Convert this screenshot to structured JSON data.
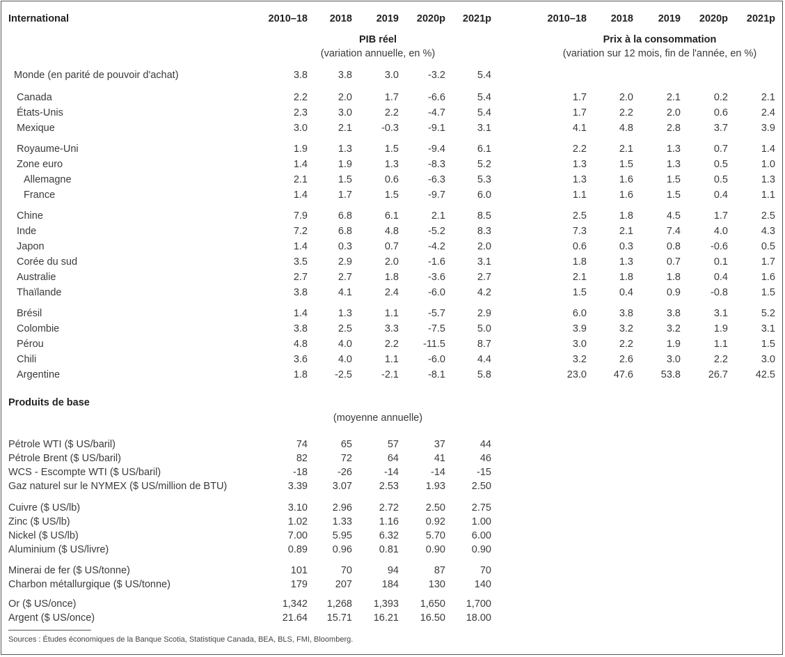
{
  "header": {
    "title": "International",
    "columns": [
      "2010–18",
      "2018",
      "2019",
      "2020p",
      "2021p"
    ]
  },
  "gdp": {
    "title": "PIB réel",
    "subtitle": "(variation annuelle, en %)"
  },
  "cpi": {
    "title": "Prix à la consommation",
    "subtitle": "(variation sur 12 mois, fin de l'année, en %)"
  },
  "countries": [
    {
      "name": "Monde (en parité de pouvoir d'achat)",
      "gdp": [
        "3.8",
        "3.8",
        "3.0",
        "-3.2",
        "5.4"
      ],
      "cpi": [
        "",
        "",
        "",
        "",
        ""
      ]
    },
    {
      "name": "Canada",
      "gdp": [
        "2.2",
        "2.0",
        "1.7",
        "-6.6",
        "5.4"
      ],
      "cpi": [
        "1.7",
        "2.0",
        "2.1",
        "0.2",
        "2.1"
      ]
    },
    {
      "name": "États-Unis",
      "gdp": [
        "2.3",
        "3.0",
        "2.2",
        "-4.7",
        "5.4"
      ],
      "cpi": [
        "1.7",
        "2.2",
        "2.0",
        "0.6",
        "2.4"
      ]
    },
    {
      "name": "Mexique",
      "gdp": [
        "3.0",
        "2.1",
        "-0.3",
        "-9.1",
        "3.1"
      ],
      "cpi": [
        "4.1",
        "4.8",
        "2.8",
        "3.7",
        "3.9"
      ]
    },
    {
      "name": "Royaume-Uni",
      "gdp": [
        "1.9",
        "1.3",
        "1.5",
        "-9.4",
        "6.1"
      ],
      "cpi": [
        "2.2",
        "2.1",
        "1.3",
        "0.7",
        "1.4"
      ]
    },
    {
      "name": "Zone euro",
      "gdp": [
        "1.4",
        "1.9",
        "1.3",
        "-8.3",
        "5.2"
      ],
      "cpi": [
        "1.3",
        "1.5",
        "1.3",
        "0.5",
        "1.0"
      ]
    },
    {
      "name": "Allemagne",
      "gdp": [
        "2.1",
        "1.5",
        "0.6",
        "-6.3",
        "5.3"
      ],
      "cpi": [
        "1.3",
        "1.6",
        "1.5",
        "0.5",
        "1.3"
      ]
    },
    {
      "name": "France",
      "gdp": [
        "1.4",
        "1.7",
        "1.5",
        "-9.7",
        "6.0"
      ],
      "cpi": [
        "1.1",
        "1.6",
        "1.5",
        "0.4",
        "1.1"
      ]
    },
    {
      "name": "Chine",
      "gdp": [
        "7.9",
        "6.8",
        "6.1",
        "2.1",
        "8.5"
      ],
      "cpi": [
        "2.5",
        "1.8",
        "4.5",
        "1.7",
        "2.5"
      ]
    },
    {
      "name": "Inde",
      "gdp": [
        "7.2",
        "6.8",
        "4.8",
        "-5.2",
        "8.3"
      ],
      "cpi": [
        "7.3",
        "2.1",
        "7.4",
        "4.0",
        "4.3"
      ]
    },
    {
      "name": "Japon",
      "gdp": [
        "1.4",
        "0.3",
        "0.7",
        "-4.2",
        "2.0"
      ],
      "cpi": [
        "0.6",
        "0.3",
        "0.8",
        "-0.6",
        "0.5"
      ]
    },
    {
      "name": "Corée du sud",
      "gdp": [
        "3.5",
        "2.9",
        "2.0",
        "-1.6",
        "3.1"
      ],
      "cpi": [
        "1.8",
        "1.3",
        "0.7",
        "0.1",
        "1.7"
      ]
    },
    {
      "name": "Australie",
      "gdp": [
        "2.7",
        "2.7",
        "1.8",
        "-3.6",
        "2.7"
      ],
      "cpi": [
        "2.1",
        "1.8",
        "1.8",
        "0.4",
        "1.6"
      ]
    },
    {
      "name": "Thaïlande",
      "gdp": [
        "3.8",
        "4.1",
        "2.4",
        "-6.0",
        "4.2"
      ],
      "cpi": [
        "1.5",
        "0.4",
        "0.9",
        "-0.8",
        "1.5"
      ]
    },
    {
      "name": "Brésil",
      "gdp": [
        "1.4",
        "1.3",
        "1.1",
        "-5.7",
        "2.9"
      ],
      "cpi": [
        "6.0",
        "3.8",
        "3.8",
        "3.1",
        "5.2"
      ]
    },
    {
      "name": "Colombie",
      "gdp": [
        "3.8",
        "2.5",
        "3.3",
        "-7.5",
        "5.0"
      ],
      "cpi": [
        "3.9",
        "3.2",
        "3.2",
        "1.9",
        "3.1"
      ]
    },
    {
      "name": "Pérou",
      "gdp": [
        "4.8",
        "4.0",
        "2.2",
        "-11.5",
        "8.7"
      ],
      "cpi": [
        "3.0",
        "2.2",
        "1.9",
        "1.1",
        "1.5"
      ]
    },
    {
      "name": "Chili",
      "gdp": [
        "3.6",
        "4.0",
        "1.1",
        "-6.0",
        "4.4"
      ],
      "cpi": [
        "3.2",
        "2.6",
        "3.0",
        "2.2",
        "3.0"
      ]
    },
    {
      "name": "Argentine",
      "gdp": [
        "1.8",
        "-2.5",
        "-2.1",
        "-8.1",
        "5.8"
      ],
      "cpi": [
        "23.0",
        "47.6",
        "53.8",
        "26.7",
        "42.5"
      ]
    }
  ],
  "commodities": {
    "title": "Produits de base",
    "subtitle": "(moyenne annuelle)",
    "rows": [
      {
        "name": "Pétrole WTI ($ US/baril)",
        "values": [
          "74",
          "65",
          "57",
          "37",
          "44"
        ]
      },
      {
        "name": "Pétrole Brent ($ US/baril)",
        "values": [
          "82",
          "72",
          "64",
          "41",
          "46"
        ]
      },
      {
        "name": "WCS - Escompte WTI ($ US/baril)",
        "values": [
          "-18",
          "-26",
          "-14",
          "-14",
          "-15"
        ]
      },
      {
        "name": "Gaz naturel sur le NYMEX ($ US/million de BTU)",
        "values": [
          "3.39",
          "3.07",
          "2.53",
          "1.93",
          "2.50"
        ]
      },
      {
        "name": "Cuivre ($ US/lb)",
        "values": [
          "3.10",
          "2.96",
          "2.72",
          "2.50",
          "2.75"
        ]
      },
      {
        "name": "Zinc ($ US/lb)",
        "values": [
          "1.02",
          "1.33",
          "1.16",
          "0.92",
          "1.00"
        ]
      },
      {
        "name": "Nickel ($ US/lb)",
        "values": [
          "7.00",
          "5.95",
          "6.32",
          "5.70",
          "6.00"
        ]
      },
      {
        "name": "Aluminium ($ US/livre)",
        "values": [
          "0.89",
          "0.96",
          "0.81",
          "0.90",
          "0.90"
        ]
      },
      {
        "name": "Minerai de fer ($ US/tonne)",
        "values": [
          "101",
          "70",
          "94",
          "87",
          "70"
        ]
      },
      {
        "name": "Charbon métallurgique ($ US/tonne)",
        "values": [
          "179",
          "207",
          "184",
          "130",
          "140"
        ]
      },
      {
        "name": "Or ($ US/once)",
        "values": [
          "1,342",
          "1,268",
          "1,393",
          "1,650",
          "1,700"
        ]
      },
      {
        "name": "Argent ($ US/once)",
        "values": [
          "21.64",
          "15.71",
          "16.21",
          "16.50",
          "18.00"
        ]
      }
    ]
  },
  "footer": {
    "sources": "Sources : Études économiques de la Banque Scotia, Statistique Canada, BEA, BLS, FMI, Bloomberg."
  }
}
